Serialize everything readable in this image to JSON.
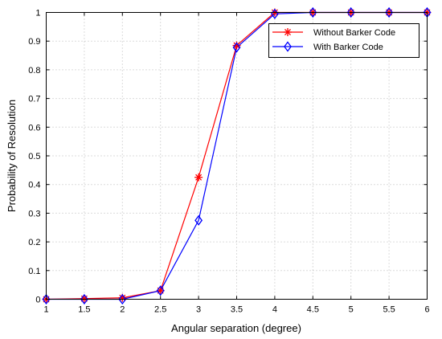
{
  "chart_data": {
    "type": "line",
    "title": "",
    "xlabel": "Angular separation (degree)",
    "ylabel": "Probability of Resolution",
    "xlim": [
      1,
      6
    ],
    "ylim": [
      0,
      1
    ],
    "grid": true,
    "legend_position": "top-right",
    "xticks": [
      1,
      1.5,
      2,
      2.5,
      3,
      3.5,
      4,
      4.5,
      5,
      5.5,
      6
    ],
    "xtick_labels": [
      "1",
      "1.5",
      "2",
      "2.5",
      "3",
      "3.5",
      "4",
      "4.5",
      "5",
      "5.5",
      "6"
    ],
    "yticks": [
      0,
      0.1,
      0.2,
      0.3,
      0.4,
      0.5,
      0.6,
      0.7,
      0.8,
      0.9,
      1
    ],
    "ytick_labels": [
      "0",
      "0.1",
      "0.2",
      "0.3",
      "0.4",
      "0.5",
      "0.6",
      "0.7",
      "0.8",
      "0.9",
      "1"
    ],
    "x": [
      1,
      1.5,
      2,
      2.5,
      3,
      3.5,
      4,
      4.5,
      5,
      5.5,
      6
    ],
    "series": [
      {
        "name": "Without Barker Code",
        "color": "#ff0000",
        "marker": "asterisk",
        "values": [
          0,
          0.002,
          0.005,
          0.03,
          0.425,
          0.885,
          1,
          1,
          1,
          1,
          1
        ]
      },
      {
        "name": "With Barker Code",
        "color": "#0000ff",
        "marker": "diamond",
        "values": [
          0,
          0,
          0,
          0.03,
          0.275,
          0.878,
          0.995,
          1,
          1,
          1,
          1
        ]
      }
    ]
  }
}
